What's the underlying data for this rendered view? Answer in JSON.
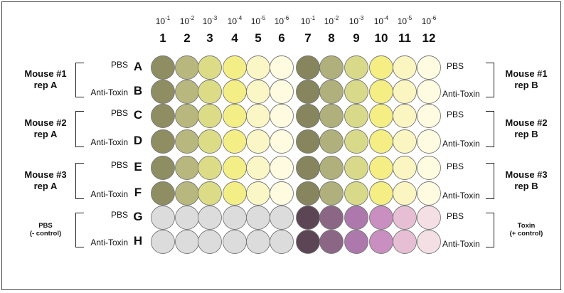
{
  "dilutions": [
    "10",
    "10",
    "10",
    "10",
    "10",
    "10",
    "10",
    "10",
    "10",
    "10",
    "10",
    "10"
  ],
  "dilution_exponents": [
    "-1",
    "-2",
    "-3",
    "-4",
    "-5",
    "-6",
    "-1",
    "-2",
    "-3",
    "-4",
    "-5",
    "-6"
  ],
  "columns": [
    "1",
    "2",
    "3",
    "4",
    "5",
    "6",
    "7",
    "8",
    "9",
    "10",
    "11",
    "12"
  ],
  "rows": [
    "A",
    "B",
    "C",
    "D",
    "E",
    "F",
    "G",
    "H"
  ],
  "left_conditions": [
    "PBS",
    "Anti-Toxin",
    "PBS",
    "Anti-Toxin",
    "PBS",
    "Anti-Toxin",
    "PBS",
    "Anti-Toxin"
  ],
  "right_conditions": [
    "PBS",
    "Anti-Toxin",
    "PBS",
    "Anti-Toxin",
    "PBS",
    "Anti-Toxin",
    "PBS",
    "Anti-Toxin"
  ],
  "left_groups": [
    {
      "line1": "Mouse #1",
      "line2": "rep A"
    },
    {
      "line1": "Mouse #2",
      "line2": "rep A"
    },
    {
      "line1": "Mouse #3",
      "line2": "rep A"
    },
    {
      "line1": "PBS",
      "line2": "(- control)"
    }
  ],
  "right_groups": [
    {
      "line1": "Mouse #1",
      "line2": "rep B"
    },
    {
      "line1": "Mouse #2",
      "line2": "rep B"
    },
    {
      "line1": "Mouse #3",
      "line2": "rep B"
    },
    {
      "line1": "Toxin",
      "line2": "(+ control)"
    }
  ],
  "well_colors": {
    "sample_rows": [
      "#8f8d62",
      "#b8b77e",
      "#dcdc86",
      "#f4ee86",
      "#fbf6c6",
      "#fffbe0",
      "#86855d",
      "#b0b07c",
      "#d8da8a",
      "#f4ee84",
      "#fbf5c2",
      "#fffbe0"
    ],
    "control_rows": [
      "#dcdcdc",
      "#dcdcdc",
      "#dcdcdc",
      "#dcdcdc",
      "#dcdcdc",
      "#dcdcdc",
      "#5c4655",
      "#8c6785",
      "#ad78ac",
      "#c98fc0",
      "#e7bfd4",
      "#f3dfe4"
    ]
  }
}
